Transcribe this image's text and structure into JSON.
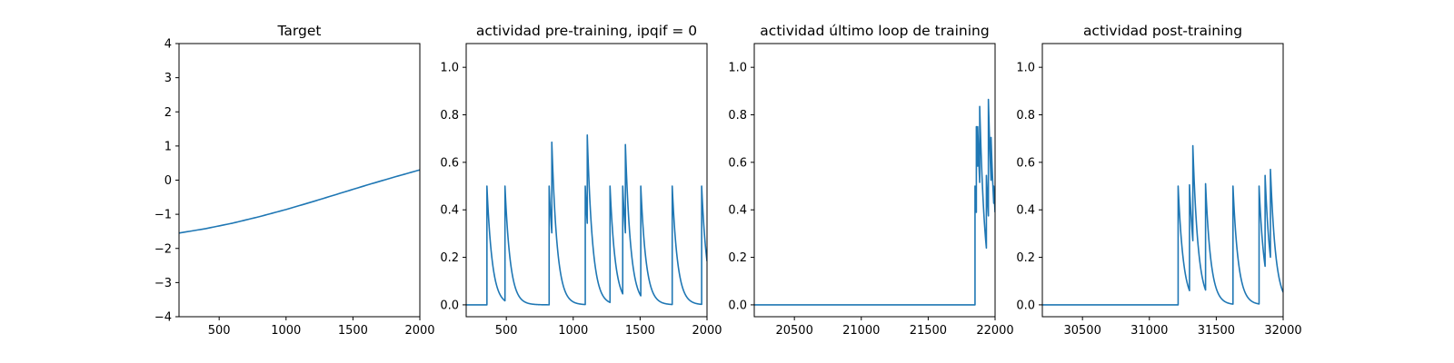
{
  "chart_data": [
    {
      "type": "line",
      "title": "Target",
      "xlabel": "",
      "ylabel": "",
      "xlim": [
        200,
        2000
      ],
      "ylim": [
        -4,
        4
      ],
      "xticks": [
        500,
        1000,
        1500,
        2000
      ],
      "yticks": [
        -4,
        -3,
        -2,
        -1,
        0,
        1,
        2,
        3,
        4
      ],
      "series": [
        {
          "x": [
            200,
            400,
            600,
            800,
            1000,
            1200,
            1400,
            1600,
            1800,
            2000
          ],
          "y": [
            -1.55,
            -1.42,
            -1.26,
            -1.07,
            -0.86,
            -0.63,
            -0.39,
            -0.15,
            0.08,
            0.3
          ]
        }
      ]
    },
    {
      "type": "line",
      "title": "actividad pre-training, ipqif = 0",
      "xlabel": "",
      "ylabel": "",
      "xlim": [
        200,
        2000
      ],
      "ylim": [
        -0.05,
        1.1
      ],
      "xticks": [
        500,
        1000,
        1500,
        2000
      ],
      "yticks": [
        0.0,
        0.2,
        0.4,
        0.6,
        0.8,
        1.0
      ],
      "spikes": {
        "t": [
          355,
          490,
          820,
          840,
          1090,
          1105,
          1275,
          1370,
          1390,
          1505,
          1740,
          1960
        ],
        "peak": [
          0.5,
          0.5,
          0.5,
          0.685,
          0.5,
          0.715,
          0.5,
          0.5,
          0.675,
          0.5,
          0.5,
          0.5
        ]
      },
      "decay": 40,
      "series": [
        {
          "x": [
            200,
            2000
          ],
          "y": [
            0,
            0
          ]
        }
      ]
    },
    {
      "type": "line",
      "title": "actividad último loop de training",
      "xlabel": "",
      "ylabel": "",
      "xlim": [
        20200,
        22000
      ],
      "ylim": [
        -0.05,
        1.1
      ],
      "xticks": [
        20500,
        21000,
        21500,
        22000
      ],
      "yticks": [
        0.0,
        0.2,
        0.4,
        0.6,
        0.8,
        1.0
      ],
      "spikes": {
        "t": [
          21850,
          21860,
          21870,
          21885,
          21935,
          21950,
          21970,
          21990
        ],
        "peak": [
          0.5,
          0.75,
          0.75,
          0.835,
          0.545,
          0.865,
          0.705,
          0.5
        ]
      },
      "decay": 40,
      "series": [
        {
          "x": [
            20200,
            22000
          ],
          "y": [
            0,
            0
          ]
        }
      ]
    },
    {
      "type": "line",
      "title": "actividad post-training",
      "xlabel": "",
      "ylabel": "",
      "xlim": [
        30200,
        32000
      ],
      "ylim": [
        -0.05,
        1.1
      ],
      "xticks": [
        30500,
        31000,
        31500,
        32000
      ],
      "yticks": [
        0.0,
        0.2,
        0.4,
        0.6,
        0.8,
        1.0
      ],
      "spikes": {
        "t": [
          31215,
          31300,
          31325,
          31420,
          31625,
          31820,
          31865,
          31905
        ],
        "peak": [
          0.5,
          0.505,
          0.67,
          0.51,
          0.5,
          0.5,
          0.545,
          0.57
        ]
      },
      "decay": 40,
      "series": [
        {
          "x": [
            30200,
            32000
          ],
          "y": [
            0,
            0
          ]
        }
      ]
    }
  ],
  "colors": {
    "series": "#1f77b4",
    "axes": "#000000"
  }
}
